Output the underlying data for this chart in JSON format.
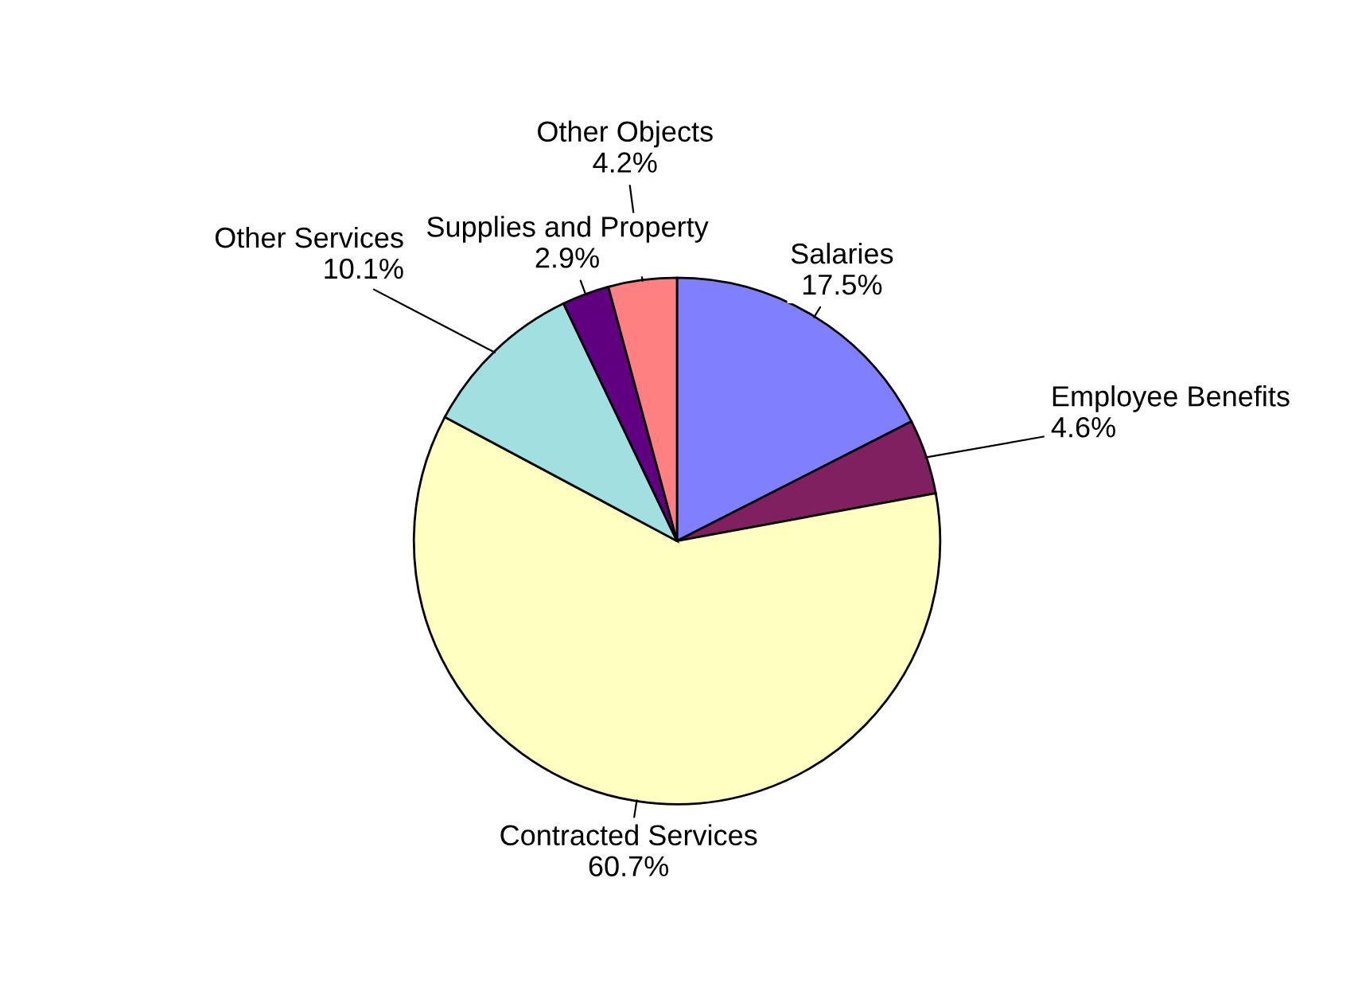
{
  "chart_data": {
    "type": "pie",
    "categories": [
      "Salaries",
      "Employee Benefits",
      "Contracted Services",
      "Other Services",
      "Supplies and Property",
      "Other Objects"
    ],
    "values": [
      17.5,
      4.6,
      60.7,
      10.1,
      2.9,
      4.2
    ],
    "value_labels": [
      "17.5%",
      "4.6%",
      "60.7%",
      "10.1%",
      "2.9%",
      "4.2%"
    ],
    "colors": [
      "#8080ff",
      "#802060",
      "#ffffc0",
      "#a0e0e0",
      "#600080",
      "#ff8080"
    ],
    "legend": false
  }
}
